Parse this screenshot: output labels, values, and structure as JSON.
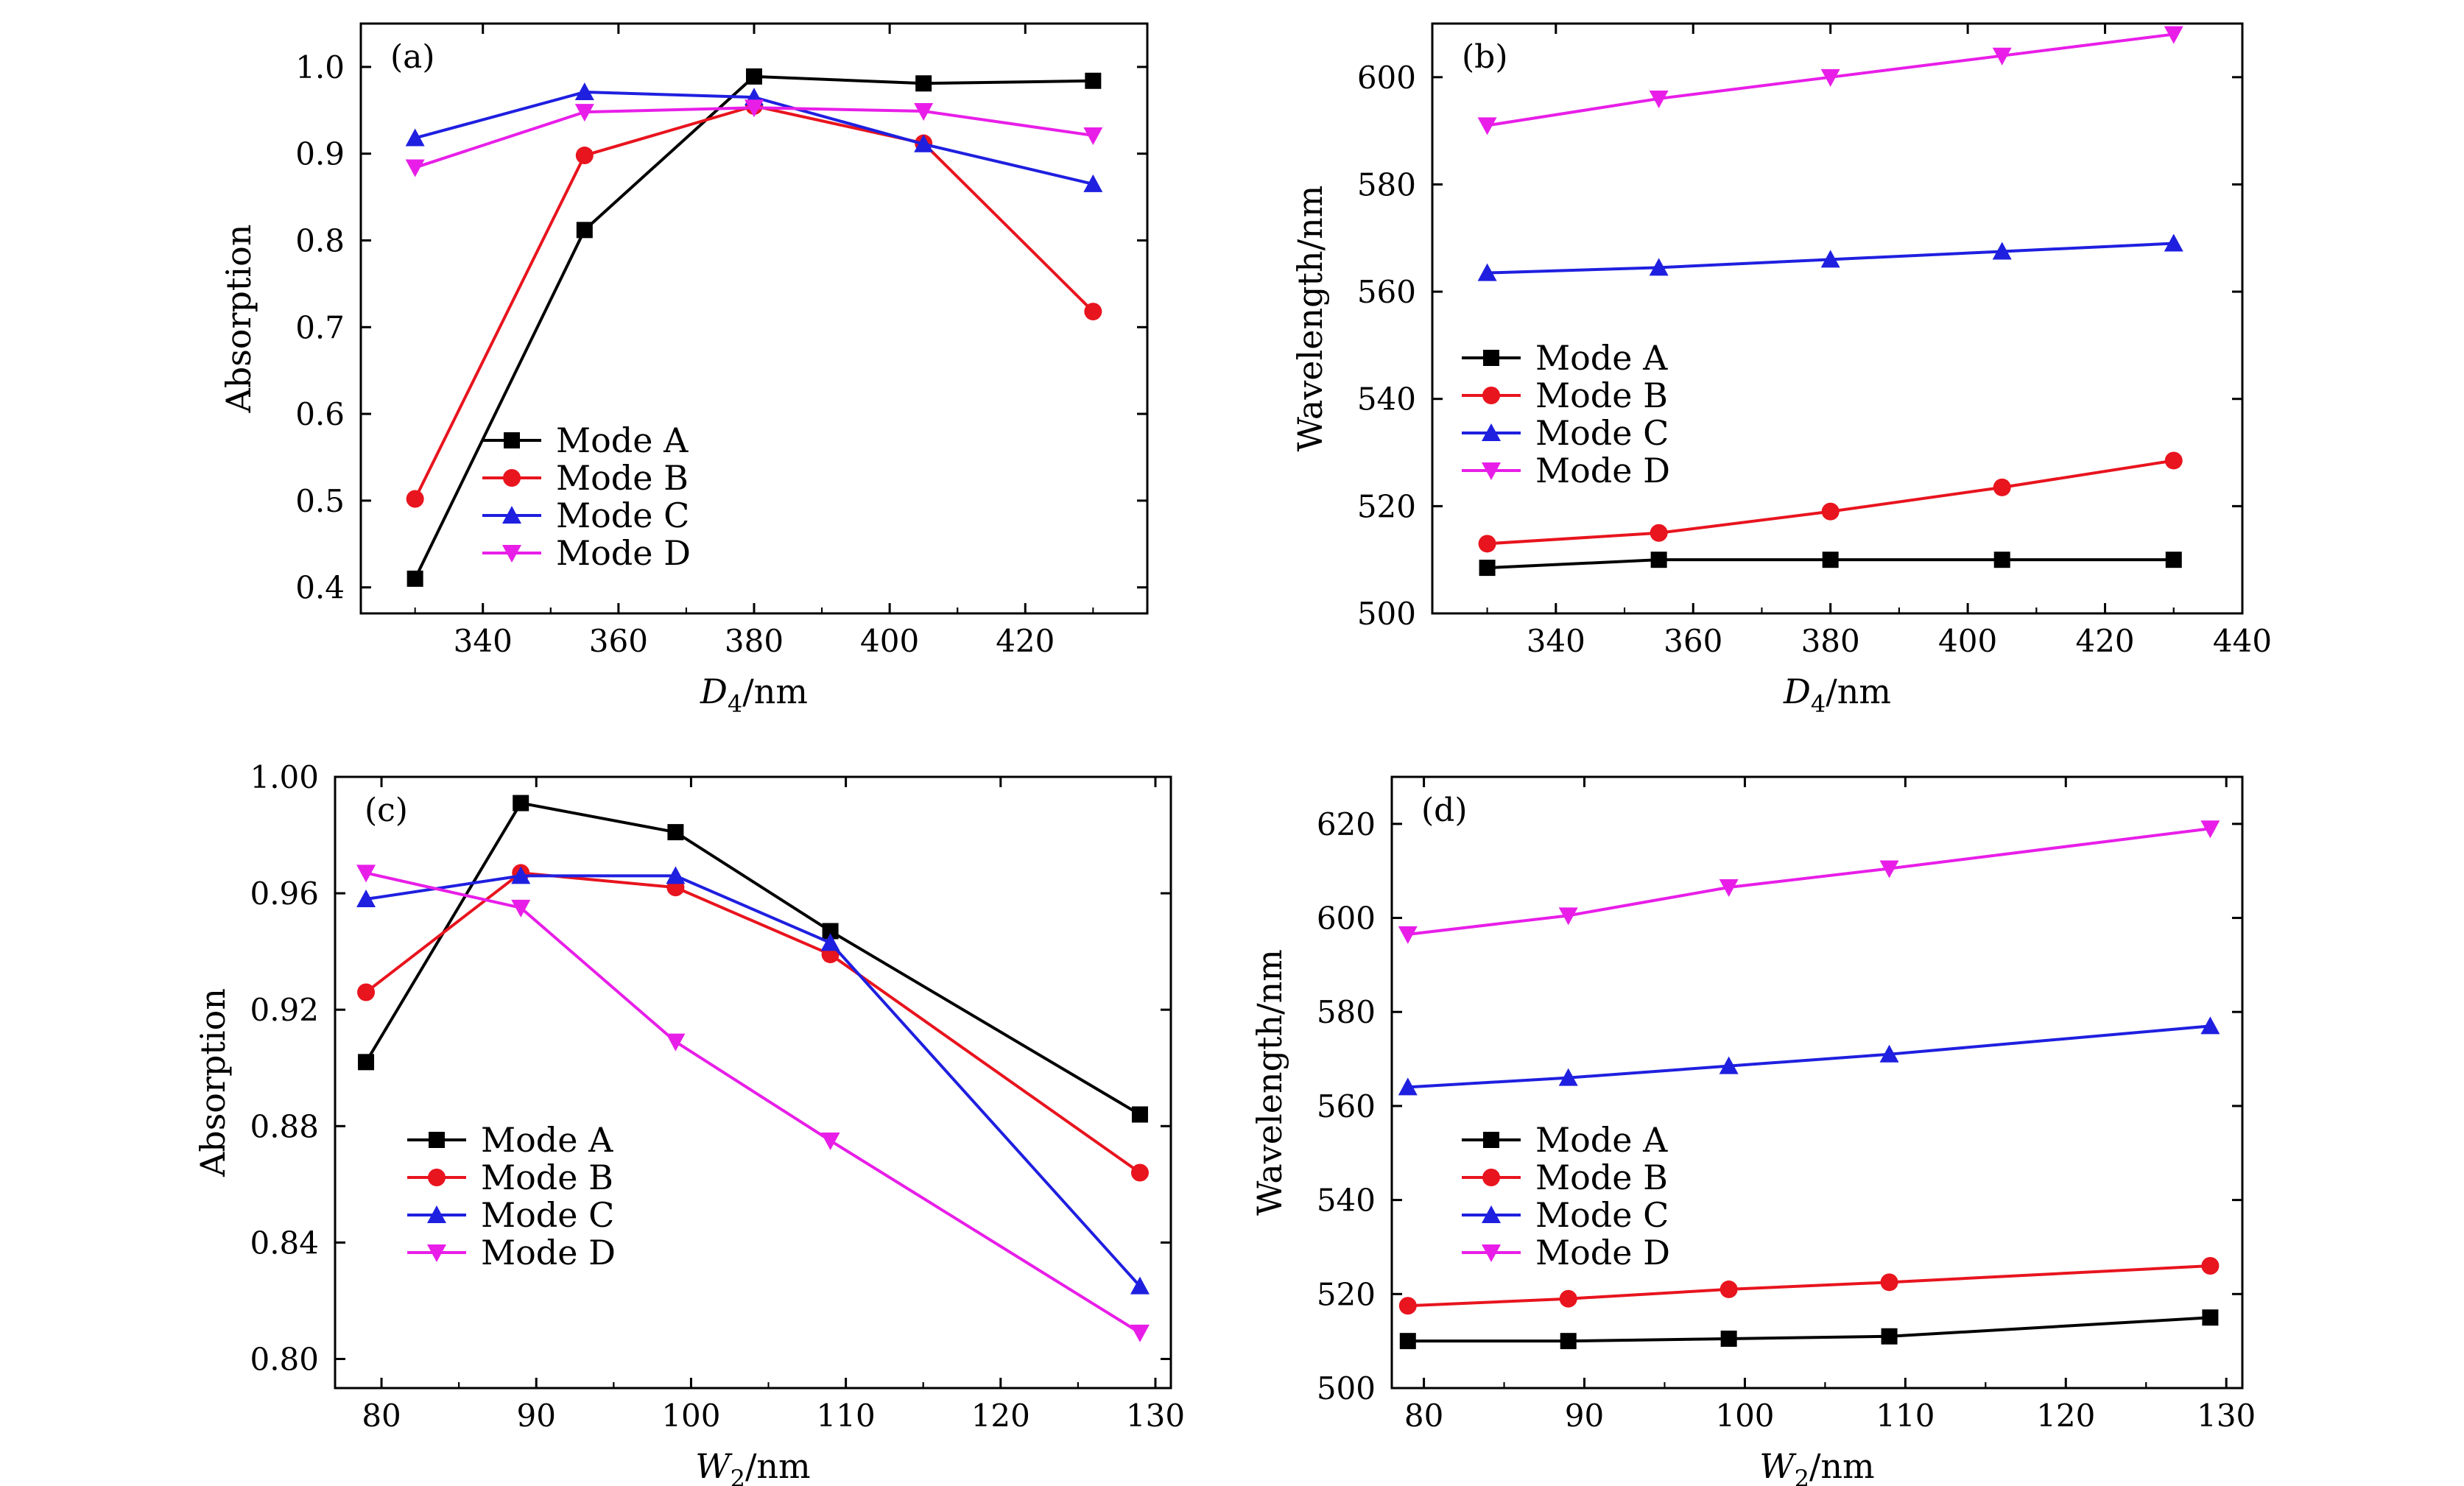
{
  "chart_data": [
    {
      "type": "line",
      "panel_label": "(a)",
      "xlabel_main": "D",
      "xlabel_sub": "4",
      "xlabel_unit": "/nm",
      "ylabel": "Absorption",
      "xlim": [
        322,
        438
      ],
      "ylim": [
        0.37,
        1.05
      ],
      "xticks": [
        340,
        360,
        380,
        400,
        420
      ],
      "xtick_labels": [
        "340",
        "360",
        "380",
        "400",
        "420"
      ],
      "yticks": [
        0.4,
        0.5,
        0.6,
        0.7,
        0.8,
        0.9,
        1.0
      ],
      "ytick_labels": [
        "0.4",
        "0.5",
        "0.6",
        "0.7",
        "0.8",
        "0.9",
        "1.0"
      ],
      "grid": false,
      "legend": "bottom-left",
      "x": [
        330,
        355,
        380,
        405,
        430
      ],
      "series": [
        {
          "name": "Mode A",
          "color": "#000000",
          "marker": "square",
          "values": [
            0.41,
            0.812,
            0.989,
            0.981,
            0.984
          ]
        },
        {
          "name": "Mode B",
          "color": "#e8141e",
          "marker": "circle",
          "values": [
            0.502,
            0.898,
            0.955,
            0.912,
            0.718
          ]
        },
        {
          "name": "Mode C",
          "color": "#1f1fe0",
          "marker": "triangle-up",
          "values": [
            0.918,
            0.971,
            0.965,
            0.911,
            0.865
          ]
        },
        {
          "name": "Mode D",
          "color": "#e81ee8",
          "marker": "triangle-down",
          "values": [
            0.884,
            0.948,
            0.953,
            0.949,
            0.921
          ]
        }
      ]
    },
    {
      "type": "line",
      "panel_label": "(b)",
      "xlabel_main": "D",
      "xlabel_sub": "4",
      "xlabel_unit": "/nm",
      "ylabel": "Wavelength/nm",
      "xlim": [
        322,
        440
      ],
      "ylim": [
        500,
        610
      ],
      "xticks": [
        340,
        360,
        380,
        400,
        420,
        440
      ],
      "xtick_labels": [
        "340",
        "360",
        "380",
        "400",
        "420",
        "440"
      ],
      "yticks": [
        500,
        520,
        540,
        560,
        580,
        600
      ],
      "ytick_labels": [
        "500",
        "520",
        "540",
        "560",
        "580",
        "600"
      ],
      "grid": false,
      "legend": "middle-left",
      "x": [
        330,
        355,
        380,
        405,
        430
      ],
      "series": [
        {
          "name": "Mode A",
          "color": "#000000",
          "marker": "square",
          "values": [
            508.5,
            510,
            510,
            510,
            510
          ]
        },
        {
          "name": "Mode B",
          "color": "#e8141e",
          "marker": "circle",
          "values": [
            513,
            515,
            519,
            523.5,
            528.5
          ]
        },
        {
          "name": "Mode C",
          "color": "#1f1fe0",
          "marker": "triangle-up",
          "values": [
            563.5,
            564.5,
            566,
            567.5,
            569
          ]
        },
        {
          "name": "Mode D",
          "color": "#e81ee8",
          "marker": "triangle-down",
          "values": [
            591,
            596,
            600,
            604,
            608
          ]
        }
      ]
    },
    {
      "type": "line",
      "panel_label": "(c)",
      "xlabel_main": "W",
      "xlabel_sub": "2",
      "xlabel_unit": "/nm",
      "ylabel": "Absorption",
      "xlim": [
        77,
        131
      ],
      "ylim": [
        0.79,
        1.0
      ],
      "xticks": [
        80,
        90,
        100,
        110,
        120,
        130
      ],
      "xtick_labels": [
        "80",
        "90",
        "100",
        "110",
        "120",
        "130"
      ],
      "yticks": [
        0.8,
        0.84,
        0.88,
        0.92,
        0.96,
        1.0
      ],
      "ytick_labels": [
        "0.80",
        "0.84",
        "0.88",
        "0.92",
        "0.96",
        "1.00"
      ],
      "grid": false,
      "legend": "bottom-left",
      "x": [
        79,
        89,
        99,
        109,
        129
      ],
      "series": [
        {
          "name": "Mode A",
          "color": "#000000",
          "marker": "square",
          "values": [
            0.902,
            0.991,
            0.981,
            0.947,
            0.884
          ]
        },
        {
          "name": "Mode B",
          "color": "#e8141e",
          "marker": "circle",
          "values": [
            0.926,
            0.967,
            0.962,
            0.939,
            0.864
          ]
        },
        {
          "name": "Mode C",
          "color": "#1f1fe0",
          "marker": "triangle-up",
          "values": [
            0.958,
            0.966,
            0.966,
            0.943,
            0.825
          ]
        },
        {
          "name": "Mode D",
          "color": "#e81ee8",
          "marker": "triangle-down",
          "values": [
            0.967,
            0.955,
            0.909,
            0.875,
            0.809
          ]
        }
      ]
    },
    {
      "type": "line",
      "panel_label": "(d)",
      "xlabel_main": "W",
      "xlabel_sub": "2",
      "xlabel_unit": "/nm",
      "ylabel": "Wavelength/nm",
      "xlim": [
        78,
        131
      ],
      "ylim": [
        500,
        630
      ],
      "xticks": [
        80,
        90,
        100,
        110,
        120,
        130
      ],
      "xtick_labels": [
        "80",
        "90",
        "100",
        "110",
        "120",
        "130"
      ],
      "yticks": [
        500,
        520,
        540,
        560,
        580,
        600,
        620
      ],
      "ytick_labels": [
        "500",
        "520",
        "540",
        "560",
        "580",
        "600",
        "620"
      ],
      "grid": false,
      "legend": "middle-left",
      "x": [
        79,
        89,
        99,
        109,
        129
      ],
      "series": [
        {
          "name": "Mode A",
          "color": "#000000",
          "marker": "square",
          "values": [
            510,
            510,
            510.5,
            511,
            515
          ]
        },
        {
          "name": "Mode B",
          "color": "#e8141e",
          "marker": "circle",
          "values": [
            517.5,
            519,
            521,
            522.5,
            526
          ]
        },
        {
          "name": "Mode C",
          "color": "#1f1fe0",
          "marker": "triangle-up",
          "values": [
            564,
            566,
            568.5,
            571,
            577
          ]
        },
        {
          "name": "Mode D",
          "color": "#e81ee8",
          "marker": "triangle-down",
          "values": [
            596.5,
            600.5,
            606.5,
            610.5,
            619
          ]
        }
      ]
    }
  ]
}
